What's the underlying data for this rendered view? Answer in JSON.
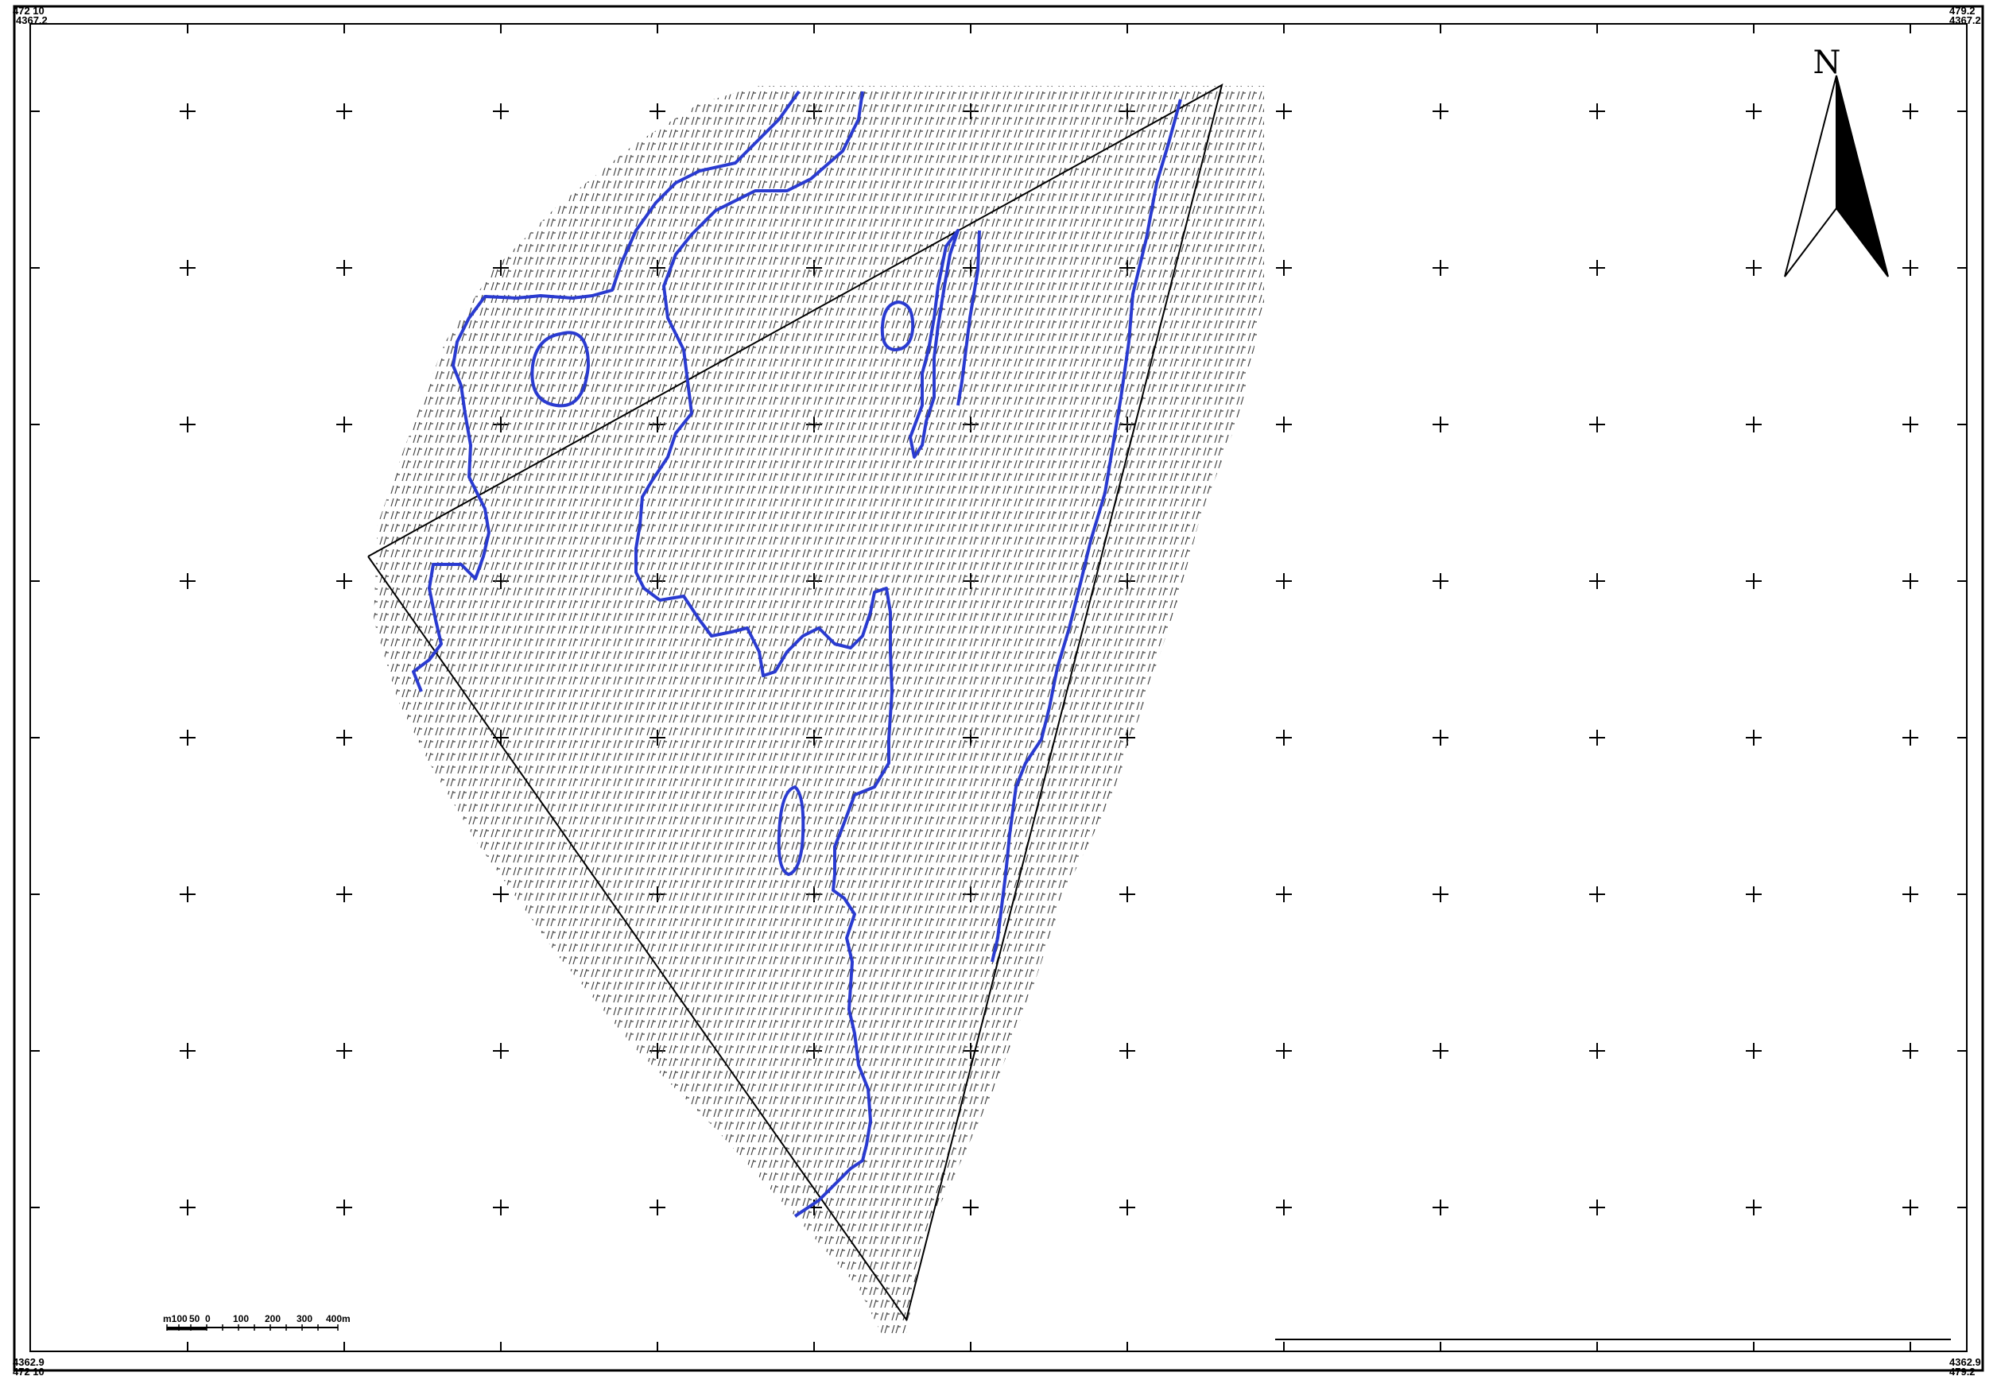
{
  "corner_labels": {
    "top_left_1": "472 10",
    "top_left_2": "4367.2",
    "top_right_1": "479.2",
    "top_right_2": "4367.2",
    "bottom_left_1": "4362.9",
    "bottom_left_2": "472 10",
    "bottom_right_1": "4362.9",
    "bottom_right_2": "479.2"
  },
  "north_arrow": {
    "label": "N"
  },
  "scale_bar": {
    "unit_prefix": "m100",
    "ticks": [
      "50",
      "0",
      "100",
      "200",
      "300",
      "400m"
    ]
  },
  "legend": {
    "pattern_symbol": "Uf"
  },
  "colors": {
    "frame": "#000000",
    "outline": "#000000",
    "boundary": "#2a3bd0",
    "pattern": "#333333",
    "background": "#ffffff"
  }
}
